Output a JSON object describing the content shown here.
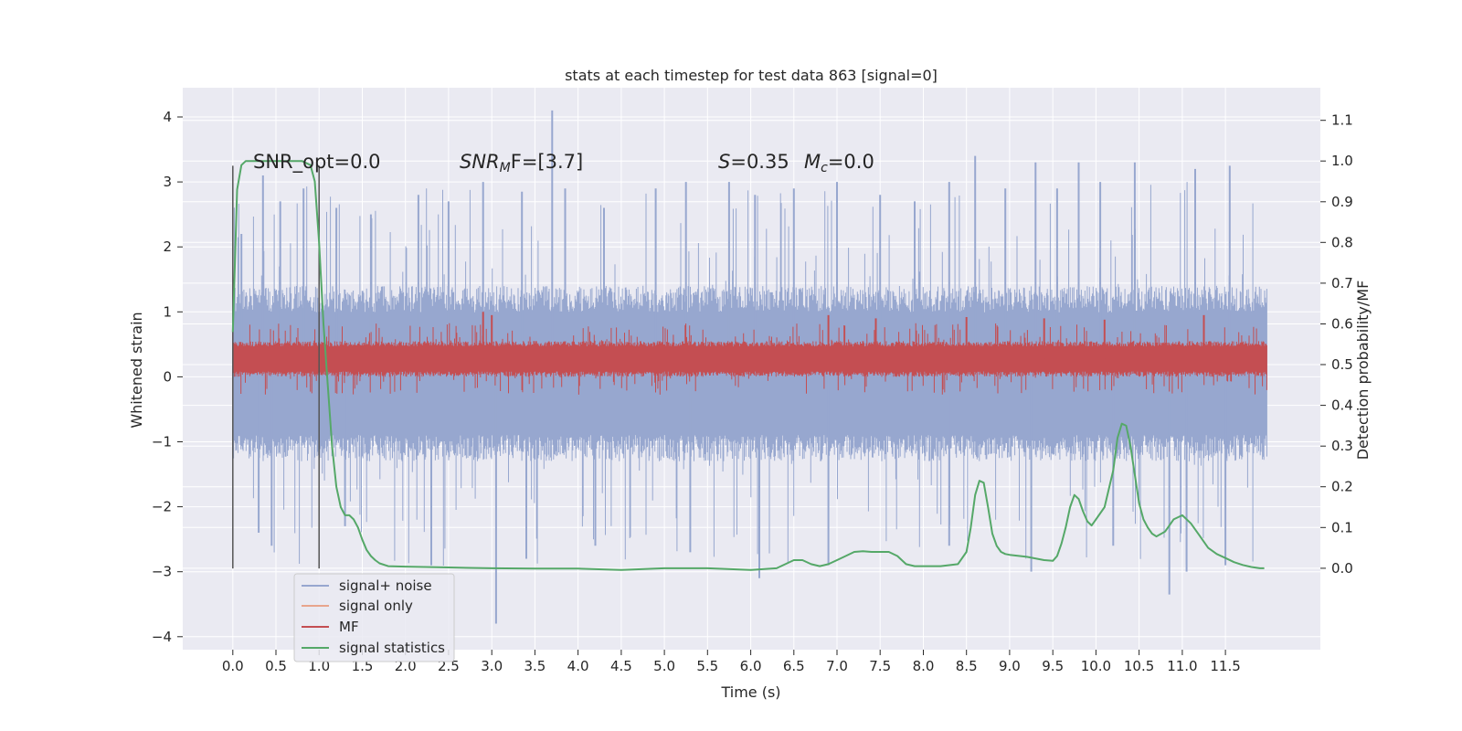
{
  "chart_data": {
    "type": "line",
    "title": "stats at each timestep for test data 863 [signal=0]",
    "xlabel": "Time (s)",
    "ylabel": "Whitened strain",
    "ylabel_right": "Detection probability/MF",
    "xlim": [
      -0.58,
      12.6
    ],
    "ylim": [
      -4.2,
      4.45
    ],
    "ylim_right": [
      -0.2,
      1.18
    ],
    "x_ticks": [
      0.0,
      0.5,
      1.0,
      1.5,
      2.0,
      2.5,
      3.0,
      3.5,
      4.0,
      4.5,
      5.0,
      5.5,
      6.0,
      6.5,
      7.0,
      7.5,
      8.0,
      8.5,
      9.0,
      9.5,
      10.0,
      10.5,
      11.0,
      11.5
    ],
    "x_tick_labels": [
      "0.0",
      "0.5",
      "1.0",
      "1.5",
      "2.0",
      "2.5",
      "3.0",
      "3.5",
      "4.0",
      "4.5",
      "5.0",
      "5.5",
      "6.0",
      "6.5",
      "7.0",
      "7.5",
      "8.0",
      "8.5",
      "9.0",
      "9.5",
      "10.0",
      "10.5",
      "11.0",
      "11.5"
    ],
    "y_ticks": [
      -4,
      -3,
      -2,
      -1,
      0,
      1,
      2,
      3,
      4
    ],
    "y_tick_labels": [
      "−4",
      "−3",
      "−2",
      "−1",
      "0",
      "1",
      "2",
      "3",
      "4"
    ],
    "y_right_ticks": [
      0.0,
      0.1,
      0.2,
      0.3,
      0.4,
      0.5,
      0.6,
      0.7,
      0.8,
      0.9,
      1.0,
      1.1
    ],
    "y_right_tick_labels": [
      "0.0",
      "0.1",
      "0.2",
      "0.3",
      "0.4",
      "0.5",
      "0.6",
      "0.7",
      "0.8",
      "0.9",
      "1.0",
      "1.1"
    ],
    "grid": true,
    "legend_position": "lower-left",
    "vlines": [
      0.0,
      1.0
    ],
    "vline_range": [
      -2.95,
      3.25
    ],
    "annotations": {
      "snr_opt": "SNR_opt=0.0",
      "snr_mf_main": "SNR",
      "snr_mf_sub": "M",
      "snr_mf_rest": "F=[3.7]",
      "s_main": "S",
      "s_rest": "=0.35",
      "mc_main": "M",
      "mc_sub": "c",
      "mc_rest": "=0.0"
    },
    "series": [
      {
        "name": "signal+ noise",
        "color": "#97a7cf",
        "axis": "left",
        "style": "noise",
        "x_range": [
          0.0,
          11.98
        ],
        "typical_range": [
          -1.3,
          1.4
        ],
        "peak_max": [
          [
            0.1,
            2.2
          ],
          [
            0.35,
            3.1
          ],
          [
            0.55,
            2.7
          ],
          [
            0.82,
            2.9
          ],
          [
            1.2,
            2.6
          ],
          [
            1.6,
            2.5
          ],
          [
            2.15,
            2.8
          ],
          [
            2.5,
            2.7
          ],
          [
            2.9,
            3.0
          ],
          [
            3.35,
            2.85
          ],
          [
            3.7,
            4.1
          ],
          [
            3.85,
            2.9
          ],
          [
            4.3,
            2.6
          ],
          [
            4.9,
            2.9
          ],
          [
            5.25,
            3.0
          ],
          [
            5.75,
            3.0
          ],
          [
            6.05,
            2.8
          ],
          [
            6.5,
            2.9
          ],
          [
            7.0,
            3.0
          ],
          [
            7.5,
            2.8
          ],
          [
            7.9,
            2.7
          ],
          [
            8.3,
            3.0
          ],
          [
            8.6,
            3.4
          ],
          [
            8.95,
            2.9
          ],
          [
            9.3,
            3.3
          ],
          [
            9.55,
            2.9
          ],
          [
            9.8,
            3.3
          ],
          [
            10.05,
            3.0
          ],
          [
            10.45,
            3.3
          ],
          [
            11.15,
            3.2
          ],
          [
            11.55,
            3.25
          ]
        ],
        "peak_min": [
          [
            0.3,
            -2.4
          ],
          [
            0.45,
            -2.6
          ],
          [
            1.3,
            -2.3
          ],
          [
            2.3,
            -2.9
          ],
          [
            3.05,
            -3.8
          ],
          [
            3.4,
            -2.8
          ],
          [
            4.2,
            -2.6
          ],
          [
            5.3,
            -2.7
          ],
          [
            6.1,
            -3.1
          ],
          [
            6.9,
            -2.9
          ],
          [
            8.3,
            -2.6
          ],
          [
            9.25,
            -3.0
          ],
          [
            10.2,
            -2.6
          ],
          [
            10.85,
            -3.35
          ],
          [
            11.05,
            -3.0
          ],
          [
            11.5,
            -2.9
          ]
        ]
      },
      {
        "name": "signal only",
        "color": "#e8a58c",
        "axis": "left",
        "style": "line",
        "x": [],
        "y": []
      },
      {
        "name": "MF",
        "color": "#c44e52",
        "axis": "left",
        "style": "band",
        "x_range": [
          0.0,
          11.98
        ],
        "typical_range": [
          0.0,
          0.55
        ],
        "peak_max": [
          [
            2.9,
            1.0
          ],
          [
            3.0,
            0.95
          ],
          [
            6.9,
            0.95
          ],
          [
            7.45,
            0.9
          ],
          [
            8.5,
            0.92
          ],
          [
            9.4,
            0.9
          ],
          [
            10.1,
            0.88
          ],
          [
            11.25,
            0.95
          ]
        ]
      },
      {
        "name": "signal statistics",
        "color": "#55a868",
        "axis": "right",
        "style": "line",
        "x": [
          0.0,
          0.05,
          0.1,
          0.15,
          0.2,
          0.4,
          0.6,
          0.8,
          0.9,
          0.95,
          1.0,
          1.05,
          1.1,
          1.15,
          1.2,
          1.25,
          1.3,
          1.35,
          1.4,
          1.45,
          1.5,
          1.55,
          1.6,
          1.65,
          1.7,
          1.8,
          2.0,
          2.5,
          3.0,
          3.5,
          4.0,
          4.5,
          5.0,
          5.5,
          6.0,
          6.3,
          6.5,
          6.6,
          6.7,
          6.8,
          6.9,
          7.0,
          7.1,
          7.2,
          7.3,
          7.4,
          7.5,
          7.6,
          7.7,
          7.8,
          7.9,
          8.0,
          8.2,
          8.4,
          8.5,
          8.55,
          8.6,
          8.65,
          8.7,
          8.75,
          8.8,
          8.85,
          8.9,
          8.95,
          9.0,
          9.2,
          9.4,
          9.5,
          9.55,
          9.6,
          9.65,
          9.7,
          9.75,
          9.8,
          9.85,
          9.9,
          9.95,
          10.0,
          10.1,
          10.2,
          10.25,
          10.3,
          10.35,
          10.4,
          10.45,
          10.5,
          10.55,
          10.6,
          10.65,
          10.7,
          10.8,
          10.9,
          11.0,
          11.1,
          11.2,
          11.3,
          11.4,
          11.5,
          11.6,
          11.7,
          11.8,
          11.9,
          11.95
        ],
        "y": [
          0.58,
          0.93,
          0.99,
          1.0,
          1.0,
          1.0,
          1.0,
          1.0,
          0.99,
          0.95,
          0.8,
          0.6,
          0.45,
          0.3,
          0.2,
          0.15,
          0.13,
          0.13,
          0.12,
          0.1,
          0.07,
          0.045,
          0.03,
          0.02,
          0.012,
          0.005,
          0.004,
          0.002,
          0.0,
          -0.001,
          -0.001,
          -0.004,
          0.0,
          0.0,
          -0.004,
          0.0,
          0.02,
          0.02,
          0.01,
          0.005,
          0.01,
          0.02,
          0.03,
          0.04,
          0.042,
          0.04,
          0.04,
          0.04,
          0.03,
          0.01,
          0.005,
          0.005,
          0.005,
          0.01,
          0.04,
          0.1,
          0.18,
          0.215,
          0.21,
          0.15,
          0.085,
          0.055,
          0.04,
          0.035,
          0.033,
          0.028,
          0.02,
          0.018,
          0.03,
          0.06,
          0.1,
          0.15,
          0.18,
          0.17,
          0.14,
          0.115,
          0.105,
          0.12,
          0.15,
          0.24,
          0.32,
          0.355,
          0.35,
          0.3,
          0.23,
          0.16,
          0.12,
          0.1,
          0.085,
          0.078,
          0.09,
          0.12,
          0.13,
          0.11,
          0.08,
          0.05,
          0.035,
          0.025,
          0.015,
          0.008,
          0.003,
          0.0,
          0.0
        ]
      }
    ]
  }
}
